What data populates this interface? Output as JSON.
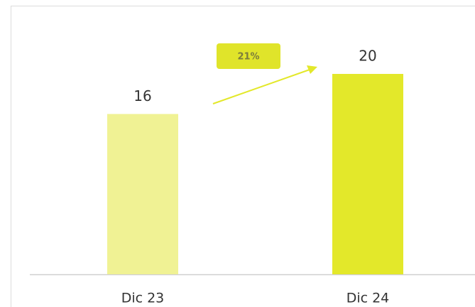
{
  "chart_data": {
    "type": "bar",
    "categories": [
      "Dic 23",
      "Dic 24"
    ],
    "values": [
      16,
      20
    ],
    "colors": [
      "#f0f294",
      "#e3e82a"
    ],
    "annotation": "21%"
  }
}
